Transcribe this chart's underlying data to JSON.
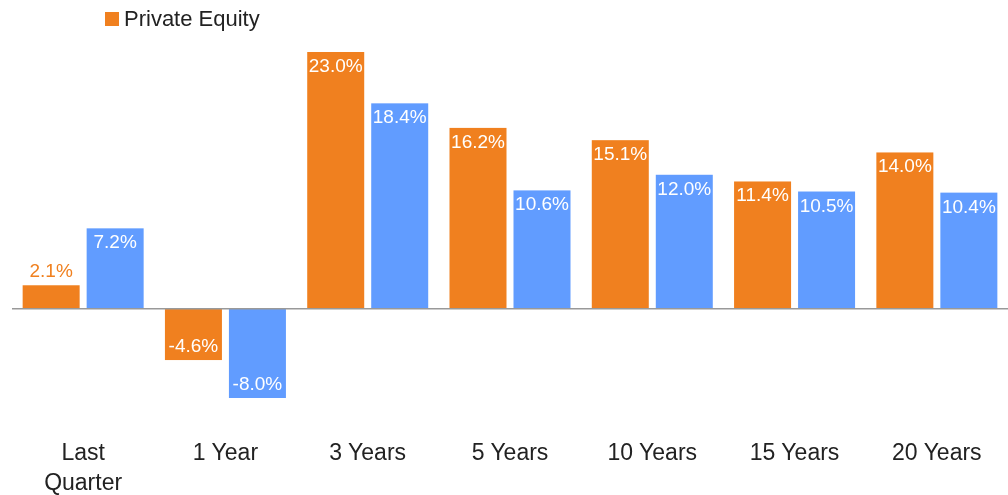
{
  "chart_data": {
    "type": "bar",
    "categories": [
      "Last Quarter",
      "1 Year",
      "3 Years",
      "5 Years",
      "10 Years",
      "15 Years",
      "20 Years"
    ],
    "series": [
      {
        "name": "Private Equity",
        "color": "#f0801f",
        "values": [
          2.1,
          -4.6,
          23.0,
          16.2,
          15.1,
          11.4,
          14.0
        ],
        "value_labels": [
          "2.1%",
          "-4.6%",
          "23.0%",
          "16.2%",
          "15.1%",
          "11.4%",
          "14.0%"
        ]
      },
      {
        "color": "#619cff",
        "values": [
          7.2,
          -8.0,
          18.4,
          10.6,
          12.0,
          10.5,
          10.4
        ],
        "value_labels": [
          "7.2%",
          "-8.0%",
          "18.4%",
          "10.6%",
          "12.0%",
          "10.5%",
          "10.4%"
        ]
      }
    ],
    "legend": "top left"
  }
}
